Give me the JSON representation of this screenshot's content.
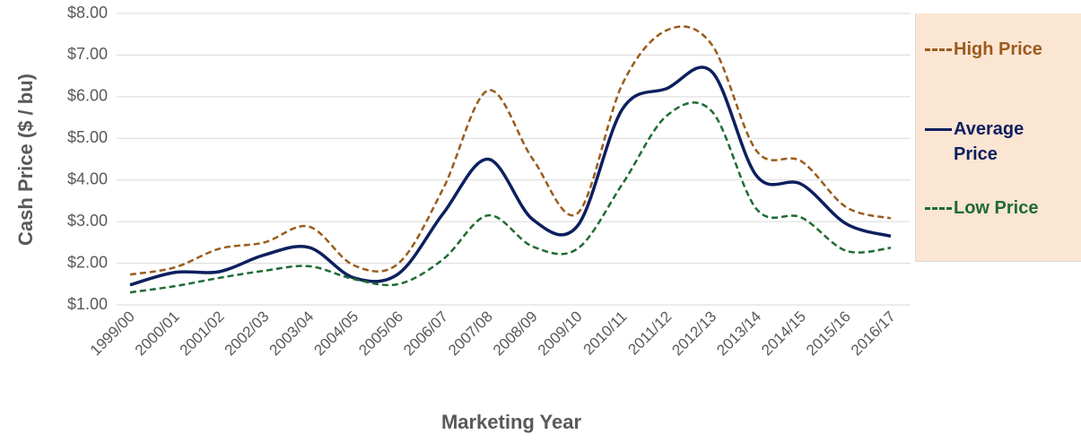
{
  "chart_data": {
    "type": "line",
    "y_label": "Cash Price ($ / bu)",
    "x_label": "Marketing Year",
    "categories": [
      "1999/00",
      "2000/01",
      "2001/02",
      "2002/03",
      "2003/04",
      "2004/05",
      "2005/06",
      "2006/07",
      "2007/08",
      "2008/09",
      "2009/10",
      "2010/11",
      "2011/12",
      "2012/13",
      "2013/14",
      "2014/15",
      "2015/16",
      "2016/17"
    ],
    "series": [
      {
        "name": "High Price",
        "color": "#9a5b1c",
        "line_style": "dashed",
        "values": [
          1.73,
          1.9,
          2.35,
          2.5,
          2.88,
          1.95,
          2.0,
          3.8,
          6.15,
          4.5,
          3.2,
          6.3,
          7.6,
          7.25,
          4.7,
          4.45,
          3.35,
          3.08
        ]
      },
      {
        "name": "Average Price",
        "color": "#0c1f5e",
        "line_style": "solid",
        "values": [
          1.48,
          1.78,
          1.8,
          2.2,
          2.38,
          1.65,
          1.75,
          3.2,
          4.5,
          3.05,
          2.9,
          5.7,
          6.2,
          6.6,
          4.1,
          3.9,
          2.95,
          2.65
        ]
      },
      {
        "name": "Low Price",
        "color": "#1f6b32",
        "line_style": "dashed",
        "values": [
          1.3,
          1.45,
          1.65,
          1.82,
          1.93,
          1.62,
          1.5,
          2.1,
          3.15,
          2.4,
          2.35,
          3.9,
          5.55,
          5.65,
          3.3,
          3.1,
          2.3,
          2.37
        ]
      }
    ],
    "ylim": [
      1,
      8
    ],
    "yticks": [
      {
        "value": 1,
        "label": "$1.00"
      },
      {
        "value": 2,
        "label": "$2.00"
      },
      {
        "value": 3,
        "label": "$3.00"
      },
      {
        "value": 4,
        "label": "$4.00"
      },
      {
        "value": 5,
        "label": "$5.00"
      },
      {
        "value": 6,
        "label": "$6.00"
      },
      {
        "value": 7,
        "label": "$7.00"
      },
      {
        "value": 8,
        "label": "$8.00"
      }
    ],
    "grid": true,
    "smooth": true,
    "legend": "right"
  }
}
